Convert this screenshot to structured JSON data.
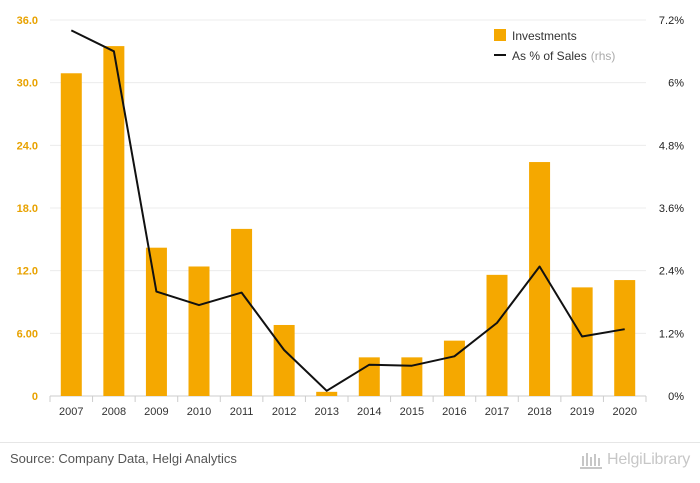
{
  "chart_data": {
    "type": "bar",
    "categories": [
      "2007",
      "2008",
      "2009",
      "2010",
      "2011",
      "2012",
      "2013",
      "2014",
      "2015",
      "2016",
      "2017",
      "2018",
      "2019",
      "2020"
    ],
    "series": [
      {
        "name": "Investments",
        "type": "bar",
        "axis": "left",
        "color": "#f5a800",
        "values": [
          30.9,
          33.5,
          14.2,
          12.4,
          16.0,
          6.8,
          0.4,
          3.7,
          3.7,
          5.3,
          11.6,
          22.4,
          10.4,
          11.1
        ]
      },
      {
        "name": "As % of Sales",
        "name_suffix": "(rhs)",
        "type": "line",
        "axis": "right",
        "color": "#111111",
        "values": [
          7.0,
          6.6,
          2.0,
          1.74,
          1.98,
          0.88,
          0.1,
          0.6,
          0.58,
          0.76,
          1.4,
          2.48,
          1.14,
          1.28
        ]
      }
    ],
    "left_axis": {
      "min": 0,
      "max": 36,
      "ticks": [
        0,
        6,
        12,
        18,
        24,
        30,
        36
      ],
      "tick_labels": [
        "0",
        "6.00",
        "12.0",
        "18.0",
        "24.0",
        "30.0",
        "36.0"
      ],
      "color": "#e8a200"
    },
    "right_axis": {
      "min": 0,
      "max": 7.2,
      "ticks": [
        0,
        1.2,
        2.4,
        3.6,
        4.8,
        6,
        7.2
      ],
      "tick_labels": [
        "0%",
        "1.2%",
        "2.4%",
        "3.6%",
        "4.8%",
        "6%",
        "7.2%"
      ]
    },
    "grid": true,
    "legend_position": "top-right"
  },
  "footer": {
    "source": "Source: Company Data, Helgi Analytics",
    "brand": "HelgiLibrary"
  },
  "colors": {
    "bar": "#f5a800",
    "line": "#111111",
    "grid": "#ececec"
  }
}
